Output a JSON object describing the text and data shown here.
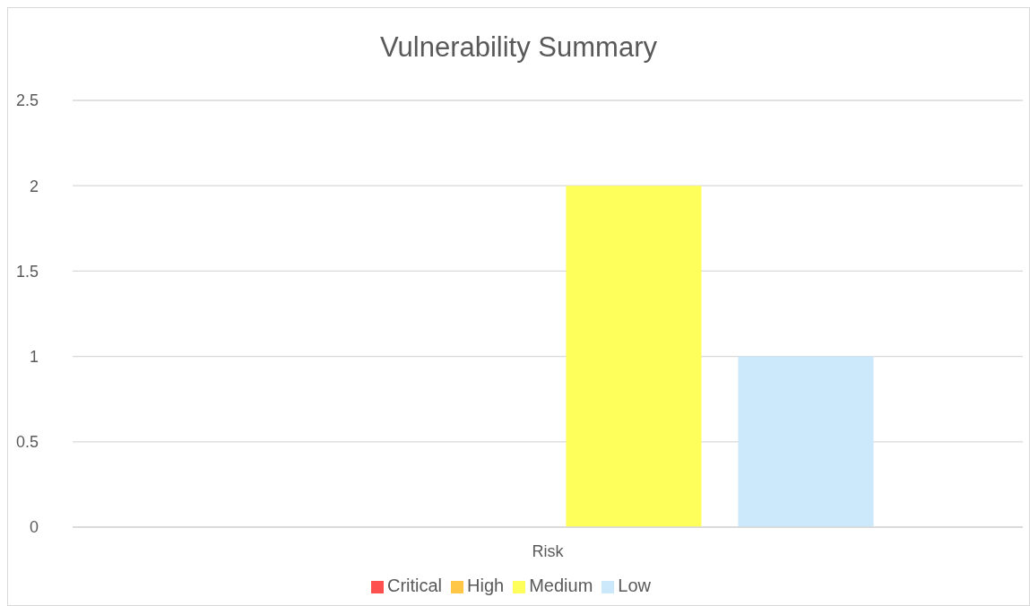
{
  "chart_data": {
    "type": "bar",
    "title": "Vulnerability Summary",
    "categories": [
      "Risk"
    ],
    "series": [
      {
        "name": "Critical",
        "color": "#ff5050",
        "values": [
          0
        ]
      },
      {
        "name": "High",
        "color": "#ffc745",
        "values": [
          0
        ]
      },
      {
        "name": "Medium",
        "color": "#ffff5c",
        "values": [
          2
        ]
      },
      {
        "name": "Low",
        "color": "#cce8fb",
        "values": [
          1
        ]
      }
    ],
    "ylim": [
      0,
      2.5
    ],
    "yticks": [
      0,
      0.5,
      1,
      1.5,
      2,
      2.5
    ],
    "grid": "y",
    "legend": "bottom"
  }
}
